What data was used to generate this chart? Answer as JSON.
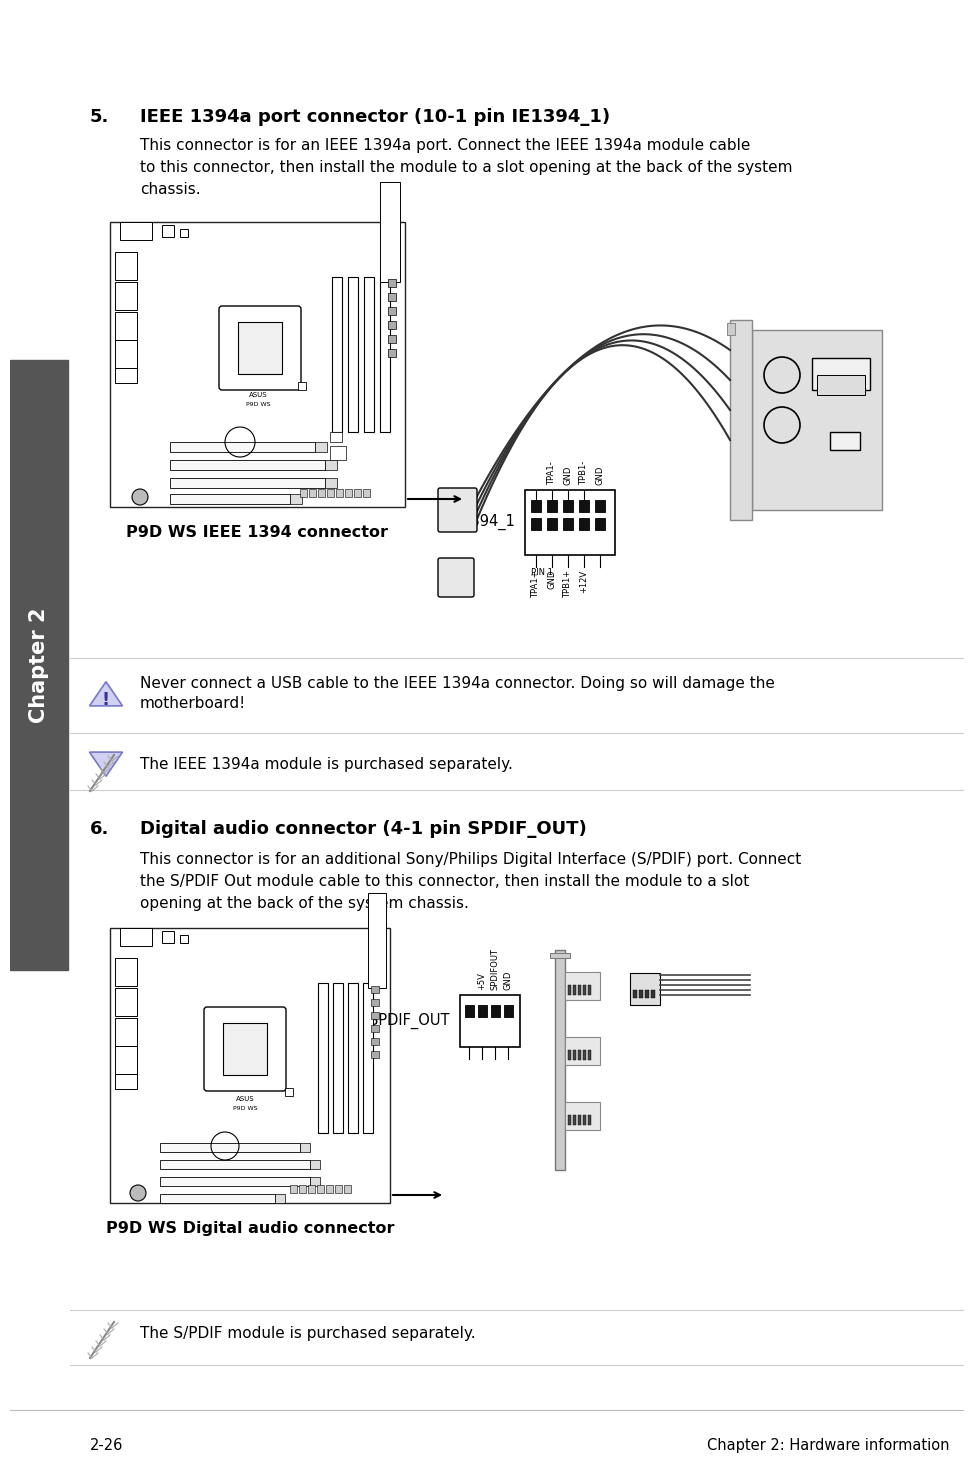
{
  "bg_color": "#ffffff",
  "sidebar_color": "#555555",
  "sidebar_text": "Chapter 2",
  "footer_left": "2-26",
  "footer_right": "Chapter 2: Hardware information",
  "section5_num": "5.",
  "section5_title": "IEEE 1394a port connector (10-1 pin IE1394_1)",
  "section5_body1": "This connector is for an IEEE 1394a port. Connect the IEEE 1394a module cable",
  "section5_body2": "to this connector, then install the module to a slot opening at the back of the system",
  "section5_body3": "chassis.",
  "diagram1_label": "P9D WS IEEE 1394 connector",
  "diagram1_conn_label": "IE1394_1",
  "pin1_label": "PIN 1",
  "pin_labels_1_top": [
    "TPA1-",
    "GND",
    "TPB1-",
    "GND"
  ],
  "pin_labels_1_bot": [
    "TPA1+",
    "GND",
    "TPB1+",
    "+12V"
  ],
  "warning_text1": "Never connect a USB cable to the IEEE 1394a connector. Doing so will damage the",
  "warning_text2": "motherboard!",
  "note1_text": "The IEEE 1394a module is purchased separately.",
  "section6_num": "6.",
  "section6_title": "Digital audio connector (4-1 pin SPDIF_OUT)",
  "section6_body1": "This connector is for an additional Sony/Philips Digital Interface (S/PDIF) port. Connect",
  "section6_body2": "the S/PDIF Out module cable to this connector, then install the module to a slot",
  "section6_body3": "opening at the back of the system chassis.",
  "diagram2_label": "P9D WS Digital audio connector",
  "diagram2_conn_label": "SPDIF_OUT",
  "pin_labels_2_top": [
    "+5V",
    "SPDIFOUT",
    "GND"
  ],
  "note2_text": "The S/PDIF module is purchased separately."
}
